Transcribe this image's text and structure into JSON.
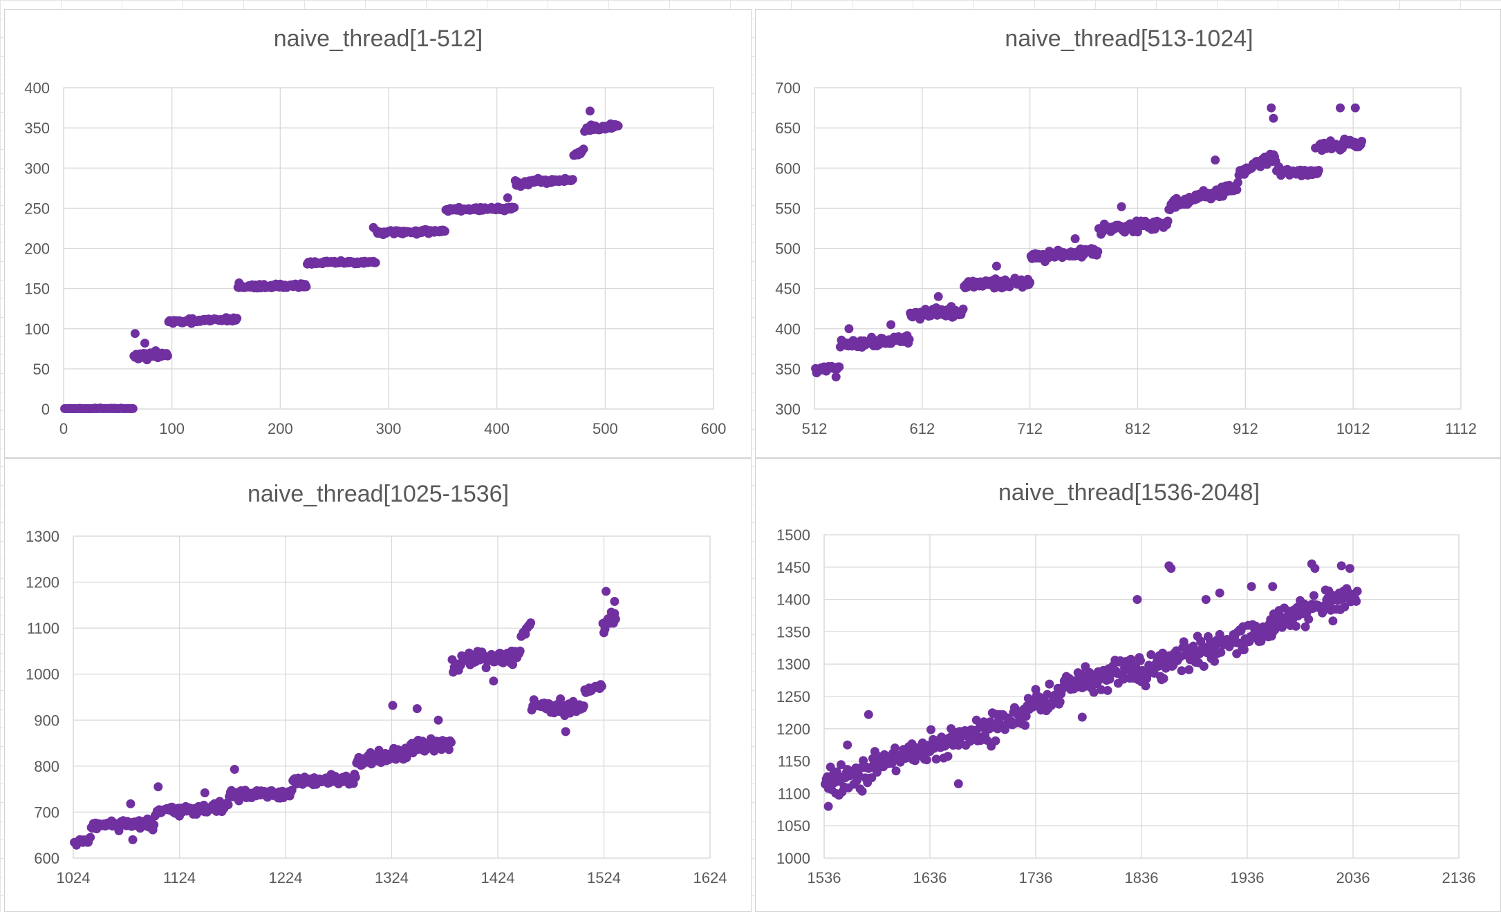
{
  "window": {
    "background_grid_color": "#e3e3e3"
  },
  "colors": {
    "marker": "#7030a0",
    "text": "#595959",
    "gridline": "#d9d9d9"
  },
  "chart_data": [
    {
      "type": "scatter",
      "title": "naive_thread[1-512]",
      "xlim": [
        0,
        600
      ],
      "ylim": [
        0,
        400
      ],
      "x_ticks": [
        "0",
        "100",
        "200",
        "300",
        "400",
        "500",
        "600"
      ],
      "y_ticks": [
        "0",
        "50",
        "100",
        "150",
        "200",
        "250",
        "300",
        "350",
        "400"
      ],
      "grid": true,
      "legend": "none",
      "series": [
        {
          "name": "naive_thread",
          "segments": [
            {
              "x": [
                1,
                64
              ],
              "y": [
                0,
                0
              ],
              "noise": 1.5
            },
            {
              "x": [
                65,
                96
              ],
              "y": [
                65,
                68
              ],
              "noise": 6
            },
            {
              "x": [
                97,
                160
              ],
              "y": [
                108,
                112
              ],
              "noise": 4
            },
            {
              "x": [
                161,
                224
              ],
              "y": [
                152,
                154
              ],
              "noise": 4
            },
            {
              "x": [
                225,
                288
              ],
              "y": [
                182,
                183
              ],
              "noise": 3
            },
            {
              "x": [
                289,
                352
              ],
              "y": [
                219,
                222
              ],
              "noise": 4
            },
            {
              "x": [
                353,
                416
              ],
              "y": [
                248,
                250
              ],
              "noise": 3.5
            },
            {
              "x": [
                417,
                470
              ],
              "y": [
                280,
                286
              ],
              "noise": 6
            },
            {
              "x": [
                471,
                480
              ],
              "y": [
                315,
                322
              ],
              "noise": 4
            },
            {
              "x": [
                481,
                512
              ],
              "y": [
                348,
                352
              ],
              "noise": 6
            }
          ],
          "outliers": [
            {
              "x": 66,
              "y": 94
            },
            {
              "x": 75,
              "y": 82
            },
            {
              "x": 162,
              "y": 157
            },
            {
              "x": 286,
              "y": 226
            },
            {
              "x": 486,
              "y": 371
            },
            {
              "x": 410,
              "y": 263
            }
          ]
        }
      ]
    },
    {
      "type": "scatter",
      "title": "naive_thread[513-1024]",
      "xlim": [
        512,
        1112
      ],
      "ylim": [
        300,
        700
      ],
      "x_ticks": [
        "512",
        "612",
        "712",
        "812",
        "912",
        "1012",
        "1112"
      ],
      "y_ticks": [
        "300",
        "350",
        "400",
        "450",
        "500",
        "550",
        "600",
        "650",
        "700"
      ],
      "grid": true,
      "legend": "none",
      "series": [
        {
          "name": "naive_thread",
          "segments": [
            {
              "x": [
                513,
                535
              ],
              "y": [
                348,
                352
              ],
              "noise": 5
            },
            {
              "x": [
                536,
                600
              ],
              "y": [
                380,
                388
              ],
              "noise": 8
            },
            {
              "x": [
                601,
                650
              ],
              "y": [
                418,
                420
              ],
              "noise": 9
            },
            {
              "x": [
                651,
                712
              ],
              "y": [
                455,
                458
              ],
              "noise": 8
            },
            {
              "x": [
                713,
                775
              ],
              "y": [
                490,
                497
              ],
              "noise": 9
            },
            {
              "x": [
                776,
                840
              ],
              "y": [
                525,
                530
              ],
              "noise": 9
            },
            {
              "x": [
                841,
                905
              ],
              "y": [
                555,
                575
              ],
              "noise": 10
            },
            {
              "x": [
                906,
                940
              ],
              "y": [
                595,
                615
              ],
              "noise": 10
            },
            {
              "x": [
                941,
                980
              ],
              "y": [
                595,
                595
              ],
              "noise": 8
            },
            {
              "x": [
                981,
                1020
              ],
              "y": [
                628,
                630
              ],
              "noise": 10
            }
          ],
          "outliers": [
            {
              "x": 532,
              "y": 340
            },
            {
              "x": 544,
              "y": 400
            },
            {
              "x": 583,
              "y": 405
            },
            {
              "x": 627,
              "y": 440
            },
            {
              "x": 681,
              "y": 478
            },
            {
              "x": 754,
              "y": 512
            },
            {
              "x": 797,
              "y": 552
            },
            {
              "x": 884,
              "y": 610
            },
            {
              "x": 936,
              "y": 675
            },
            {
              "x": 938,
              "y": 662
            },
            {
              "x": 1000,
              "y": 675
            },
            {
              "x": 1014,
              "y": 675
            },
            {
              "x": 977,
              "y": 625
            }
          ]
        }
      ]
    },
    {
      "type": "scatter",
      "title": "naive_thread[1025-1536]",
      "xlim": [
        1024,
        1624
      ],
      "ylim": [
        600,
        1300
      ],
      "x_ticks": [
        "1024",
        "1124",
        "1224",
        "1324",
        "1424",
        "1524",
        "1624"
      ],
      "y_ticks": [
        "600",
        "700",
        "800",
        "900",
        "1000",
        "1100",
        "1200",
        "1300"
      ],
      "grid": true,
      "legend": "none",
      "series": [
        {
          "name": "naive_thread",
          "segments": [
            {
              "x": [
                1025,
                1040
              ],
              "y": [
                632,
                640
              ],
              "noise": 10
            },
            {
              "x": [
                1041,
                1100
              ],
              "y": [
                672,
                672
              ],
              "noise": 18
            },
            {
              "x": [
                1101,
                1170
              ],
              "y": [
                698,
                712
              ],
              "noise": 16
            },
            {
              "x": [
                1171,
                1230
              ],
              "y": [
                738,
                738
              ],
              "noise": 16
            },
            {
              "x": [
                1231,
                1290
              ],
              "y": [
                765,
                772
              ],
              "noise": 16
            },
            {
              "x": [
                1291,
                1340
              ],
              "y": [
                810,
                825
              ],
              "noise": 22
            },
            {
              "x": [
                1341,
                1380
              ],
              "y": [
                840,
                850
              ],
              "noise": 20
            },
            {
              "x": [
                1381,
                1445
              ],
              "y": [
                1025,
                1040
              ],
              "noise": 24
            },
            {
              "x": [
                1446,
                1455
              ],
              "y": [
                1080,
                1110
              ],
              "noise": 14
            },
            {
              "x": [
                1456,
                1505
              ],
              "y": [
                935,
                925
              ],
              "noise": 24
            },
            {
              "x": [
                1506,
                1522
              ],
              "y": [
                965,
                975
              ],
              "noise": 10
            },
            {
              "x": [
                1523,
                1535
              ],
              "y": [
                1105,
                1125
              ],
              "noise": 35
            }
          ],
          "outliers": [
            {
              "x": 1078,
              "y": 718
            },
            {
              "x": 1080,
              "y": 640
            },
            {
              "x": 1104,
              "y": 755
            },
            {
              "x": 1148,
              "y": 742
            },
            {
              "x": 1176,
              "y": 793
            },
            {
              "x": 1325,
              "y": 932
            },
            {
              "x": 1348,
              "y": 925
            },
            {
              "x": 1368,
              "y": 900
            },
            {
              "x": 1420,
              "y": 985
            },
            {
              "x": 1488,
              "y": 875
            },
            {
              "x": 1526,
              "y": 1180
            },
            {
              "x": 1534,
              "y": 1158
            }
          ]
        }
      ]
    },
    {
      "type": "scatter",
      "title": "naive_thread[1536-2048]",
      "xlim": [
        1536,
        2136
      ],
      "ylim": [
        1000,
        1500
      ],
      "x_ticks": [
        "1536",
        "1636",
        "1736",
        "1836",
        "1936",
        "2036",
        "2136"
      ],
      "y_ticks": [
        "1000",
        "1050",
        "1100",
        "1150",
        "1200",
        "1250",
        "1300",
        "1350",
        "1400",
        "1450",
        "1500"
      ],
      "grid": true,
      "legend": "none",
      "series": [
        {
          "name": "naive_thread",
          "segments": [
            {
              "x": [
                1537,
                1600
              ],
              "y": [
                1115,
                1150
              ],
              "noise": 38
            },
            {
              "x": [
                1601,
                1680
              ],
              "y": [
                1155,
                1190
              ],
              "noise": 32
            },
            {
              "x": [
                1681,
                1760
              ],
              "y": [
                1190,
                1255
              ],
              "noise": 35
            },
            {
              "x": [
                1761,
                1830
              ],
              "y": [
                1270,
                1295
              ],
              "noise": 35
            },
            {
              "x": [
                1831,
                1900
              ],
              "y": [
                1290,
                1320
              ],
              "noise": 35
            },
            {
              "x": [
                1901,
                1960
              ],
              "y": [
                1320,
                1355
              ],
              "noise": 30
            },
            {
              "x": [
                1961,
                2040
              ],
              "y": [
                1370,
                1400
              ],
              "noise": 32
            }
          ],
          "outliers": [
            {
              "x": 1540,
              "y": 1080
            },
            {
              "x": 1558,
              "y": 1175
            },
            {
              "x": 1578,
              "y": 1222
            },
            {
              "x": 1663,
              "y": 1115
            },
            {
              "x": 1780,
              "y": 1218
            },
            {
              "x": 1862,
              "y": 1452
            },
            {
              "x": 1864,
              "y": 1448
            },
            {
              "x": 1832,
              "y": 1400
            },
            {
              "x": 1897,
              "y": 1400
            },
            {
              "x": 1910,
              "y": 1410
            },
            {
              "x": 1940,
              "y": 1420
            },
            {
              "x": 1997,
              "y": 1455
            },
            {
              "x": 2000,
              "y": 1448
            },
            {
              "x": 2025,
              "y": 1452
            },
            {
              "x": 2033,
              "y": 1448
            },
            {
              "x": 1960,
              "y": 1420
            }
          ]
        }
      ]
    }
  ]
}
